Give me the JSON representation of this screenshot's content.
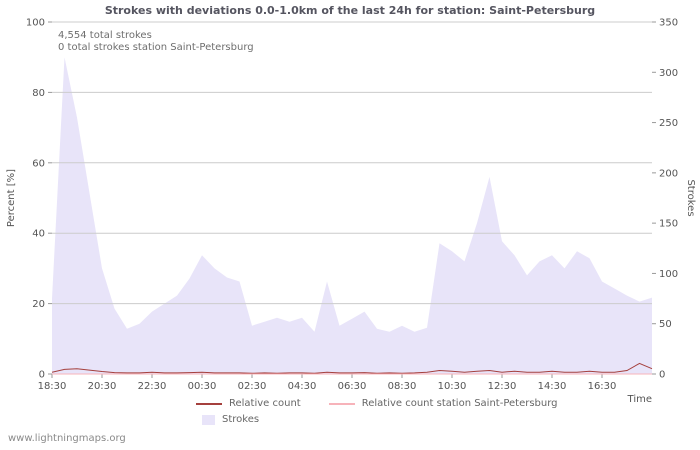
{
  "page": {
    "title": "Strokes with deviations 0.0-1.0km of the last 24h for station: Saint-Petersburg",
    "watermark": "www.lightningmaps.org"
  },
  "annotations": {
    "total_strokes": "4,554 total strokes",
    "total_strokes_station": "0 total strokes station Saint-Petersburg"
  },
  "axes": {
    "left_label": "Percent [%]",
    "right_label": "Strokes",
    "x_label": "Time",
    "left_ticks": [
      0,
      20,
      40,
      60,
      80,
      100
    ],
    "right_ticks": [
      0,
      50,
      100,
      150,
      200,
      250,
      300,
      350
    ],
    "x_ticks": [
      "18:30",
      "20:30",
      "22:30",
      "00:30",
      "02:30",
      "04:30",
      "06:30",
      "08:30",
      "10:30",
      "12:30",
      "14:30",
      "16:30"
    ]
  },
  "legend": [
    {
      "type": "line",
      "color": "#a5403d",
      "label": "Relative count"
    },
    {
      "type": "line",
      "color": "#f7b3ba",
      "label": "Relative count station Saint-Petersburg"
    },
    {
      "type": "area",
      "color": "#e8e4f9",
      "label": "Strokes"
    }
  ],
  "colors": {
    "gridline": "#cccccc",
    "tick": "#999999",
    "area_fill": "#e8e4f9",
    "relative_count": "#a5403d",
    "relative_count_station": "#f7b3ba"
  },
  "chart_data": {
    "type": "area",
    "title": "Strokes with deviations 0.0-1.0km of the last 24h for station: Saint-Petersburg",
    "x_start": "18:30",
    "x_step_minutes": 30,
    "x_span_hours": 24,
    "x_ticks": [
      "18:30",
      "20:30",
      "22:30",
      "00:30",
      "02:30",
      "04:30",
      "06:30",
      "08:30",
      "10:30",
      "12:30",
      "14:30",
      "16:30"
    ],
    "left_axis": {
      "label": "Percent [%]",
      "range": [
        0,
        100
      ]
    },
    "right_axis": {
      "label": "Strokes",
      "range": [
        0,
        350
      ]
    },
    "grid": "horizontal",
    "legend_position": "bottom",
    "series": [
      {
        "name": "Strokes",
        "type": "area",
        "axis": "right",
        "color": "#e8e4f9",
        "values": [
          75,
          315,
          255,
          180,
          105,
          65,
          45,
          50,
          62,
          70,
          78,
          95,
          118,
          105,
          96,
          92,
          48,
          52,
          56,
          52,
          56,
          42,
          92,
          48,
          55,
          62,
          45,
          42,
          48,
          42,
          46,
          130,
          122,
          112,
          150,
          196,
          132,
          118,
          98,
          112,
          118,
          105,
          122,
          115,
          92,
          85,
          78,
          72,
          76
        ]
      },
      {
        "name": "Relative count",
        "type": "line",
        "axis": "left",
        "color": "#a5403d",
        "values": [
          0.5,
          1.3,
          1.5,
          1.1,
          0.7,
          0.4,
          0.3,
          0.3,
          0.5,
          0.3,
          0.3,
          0.4,
          0.5,
          0.3,
          0.3,
          0.3,
          0.2,
          0.3,
          0.2,
          0.3,
          0.3,
          0.2,
          0.5,
          0.3,
          0.3,
          0.4,
          0.2,
          0.3,
          0.2,
          0.3,
          0.5,
          1.0,
          0.8,
          0.5,
          0.8,
          1.0,
          0.5,
          0.8,
          0.5,
          0.5,
          0.8,
          0.5,
          0.5,
          0.8,
          0.5,
          0.5,
          1.0,
          3.0,
          1.5
        ]
      },
      {
        "name": "Relative count station Saint-Petersburg",
        "type": "line",
        "axis": "left",
        "color": "#f7b3ba",
        "values": [
          0,
          0,
          0,
          0,
          0,
          0,
          0,
          0,
          0,
          0,
          0,
          0,
          0,
          0,
          0,
          0,
          0,
          0,
          0,
          0,
          0,
          0,
          0,
          0,
          0,
          0,
          0,
          0,
          0,
          0,
          0,
          0,
          0,
          0,
          0,
          0,
          0,
          0,
          0,
          0,
          0,
          0,
          0,
          0,
          0,
          0,
          0,
          0,
          0
        ]
      }
    ],
    "annotations": [
      "4,554 total strokes",
      "0 total strokes station Saint-Petersburg"
    ]
  }
}
